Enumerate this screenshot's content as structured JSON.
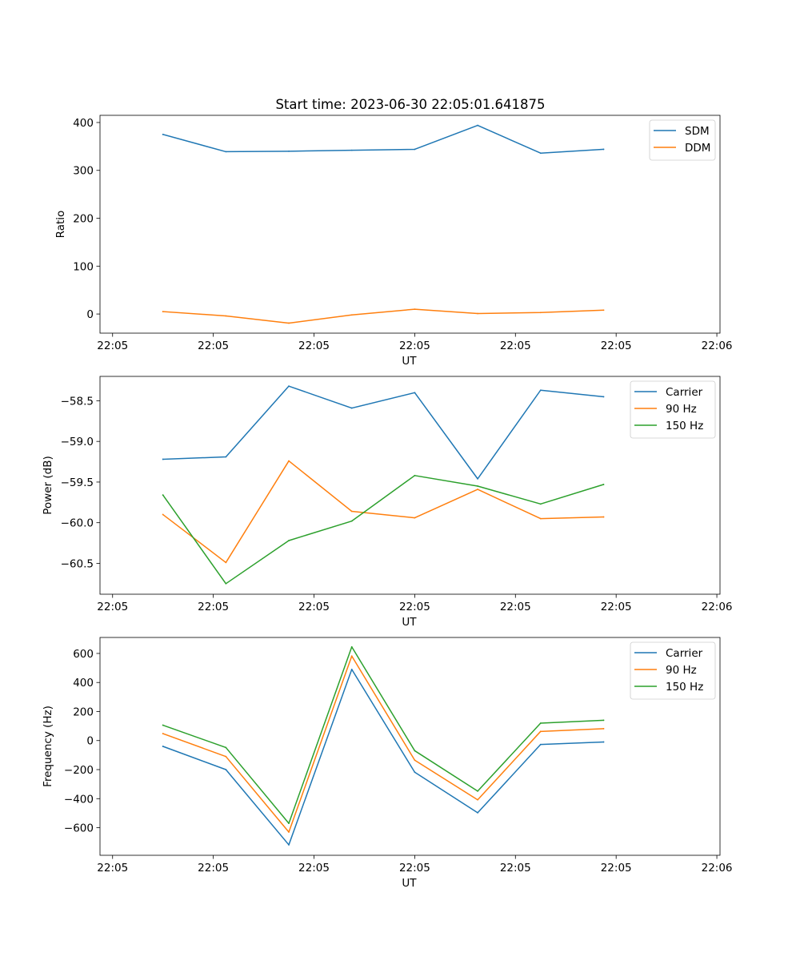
{
  "title": "Start time: 2023-06-30 22:05:01.641875",
  "chart_data": [
    {
      "type": "line",
      "xlabel": "UT",
      "ylabel": "Ratio",
      "x_tick_labels": [
        "22:05",
        "22:05",
        "22:05",
        "22:05",
        "22:05",
        "22:05",
        "22:06"
      ],
      "x_tick_values": [
        -0.2,
        1.4,
        3.0,
        4.6,
        6.2,
        7.8,
        9.4
      ],
      "xlim": [
        -0.4,
        9.45
      ],
      "ylim": [
        -40,
        415
      ],
      "yticks": [
        0,
        100,
        200,
        300,
        400
      ],
      "legend": "top-right",
      "grid": false,
      "x": [
        0.6,
        1.6,
        2.6,
        3.6,
        4.6,
        5.6,
        6.6,
        7.6
      ],
      "series": [
        {
          "name": "SDM",
          "color": "#1f77b4",
          "values": [
            375,
            339,
            340,
            342,
            344,
            394,
            336,
            344
          ]
        },
        {
          "name": "DDM",
          "color": "#ff7f0e",
          "values": [
            5,
            -4,
            -19,
            -2,
            10,
            1,
            3,
            8
          ]
        }
      ]
    },
    {
      "type": "line",
      "xlabel": "UT",
      "ylabel": "Power (dB)",
      "x_tick_labels": [
        "22:05",
        "22:05",
        "22:05",
        "22:05",
        "22:05",
        "22:05",
        "22:06"
      ],
      "x_tick_values": [
        -0.2,
        1.4,
        3.0,
        4.6,
        6.2,
        7.8,
        9.4
      ],
      "xlim": [
        -0.4,
        9.45
      ],
      "ylim": [
        -60.88,
        -58.2
      ],
      "yticks": [
        -60.5,
        -60.0,
        -59.5,
        -59.0,
        -58.5
      ],
      "ytick_labels": [
        "−60.5",
        "−60.0",
        "−59.5",
        "−59.0",
        "−58.5"
      ],
      "legend": "top-right",
      "grid": false,
      "x": [
        0.6,
        1.6,
        2.6,
        3.6,
        4.6,
        5.6,
        6.6,
        7.6
      ],
      "series": [
        {
          "name": "Carrier",
          "color": "#1f77b4",
          "values": [
            -59.22,
            -59.19,
            -58.32,
            -58.59,
            -58.4,
            -59.46,
            -58.37,
            -58.45
          ]
        },
        {
          "name": "90 Hz",
          "color": "#ff7f0e",
          "values": [
            -59.9,
            -60.49,
            -59.24,
            -59.86,
            -59.94,
            -59.59,
            -59.95,
            -59.93
          ]
        },
        {
          "name": "150 Hz",
          "color": "#2ca02c",
          "values": [
            -59.66,
            -60.75,
            -60.22,
            -59.98,
            -59.42,
            -59.55,
            -59.77,
            -59.53
          ]
        }
      ]
    },
    {
      "type": "line",
      "xlabel": "UT",
      "ylabel": "Frequency (Hz)",
      "x_tick_labels": [
        "22:05",
        "22:05",
        "22:05",
        "22:05",
        "22:05",
        "22:05",
        "22:06"
      ],
      "x_tick_values": [
        -0.2,
        1.4,
        3.0,
        4.6,
        6.2,
        7.8,
        9.4
      ],
      "xlim": [
        -0.4,
        9.45
      ],
      "ylim": [
        -790,
        710
      ],
      "yticks": [
        -600,
        -400,
        -200,
        0,
        200,
        400,
        600
      ],
      "ytick_labels": [
        "−600",
        "−400",
        "−200",
        "0",
        "200",
        "400",
        "600"
      ],
      "legend": "top-right",
      "grid": false,
      "x": [
        0.6,
        1.6,
        2.6,
        3.6,
        4.6,
        5.6,
        6.6,
        7.6
      ],
      "series": [
        {
          "name": "Carrier",
          "color": "#1f77b4",
          "values": [
            -40,
            -200,
            -718,
            490,
            -218,
            -497,
            -27,
            -10
          ]
        },
        {
          "name": "90 Hz",
          "color": "#ff7f0e",
          "values": [
            48,
            -110,
            -630,
            582,
            -135,
            -408,
            63,
            82
          ]
        },
        {
          "name": "150 Hz",
          "color": "#2ca02c",
          "values": [
            106,
            -48,
            -570,
            645,
            -70,
            -348,
            120,
            140
          ]
        }
      ]
    }
  ]
}
